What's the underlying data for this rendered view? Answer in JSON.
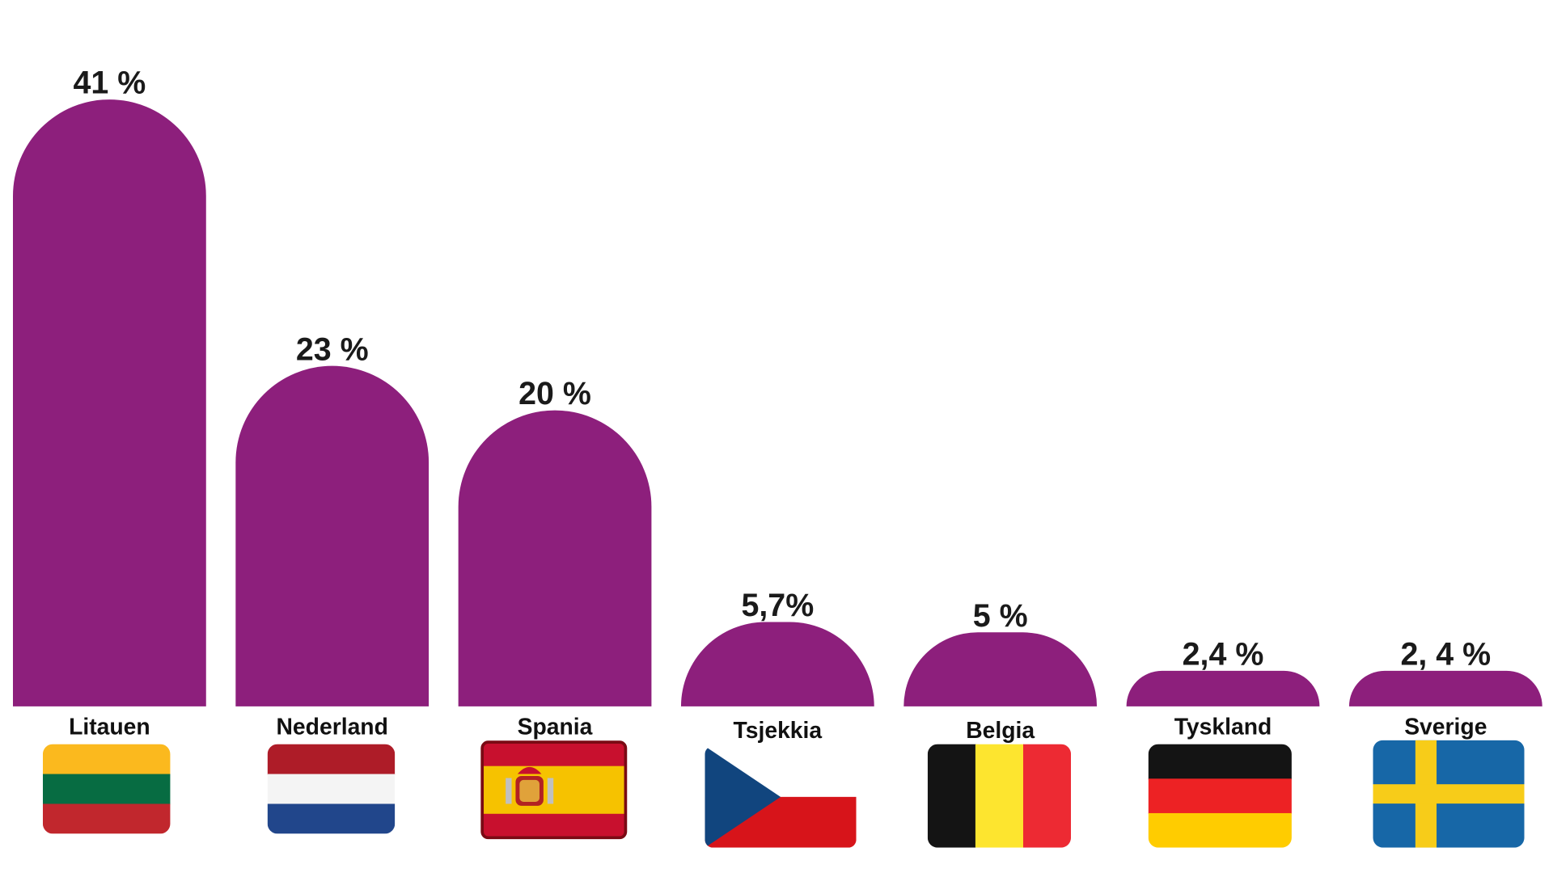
{
  "chart_data": {
    "type": "bar",
    "categories": [
      "Litauen",
      "Nederland",
      "Spania",
      "Tsjekkia",
      "Belgia",
      "Tyskland",
      "Sverige"
    ],
    "values": [
      41,
      23,
      20,
      5.7,
      5,
      2.4,
      2.4
    ],
    "value_labels": [
      "41 %",
      "23 %",
      "20 %",
      "5,7%",
      "5 %",
      "2,4 %",
      "2, 4 %"
    ],
    "ylim": [
      0,
      41
    ],
    "grid": false,
    "legend": "none",
    "bar_color": "#8d1f7c",
    "flags": [
      "lithuania-flag",
      "netherlands-flag",
      "spain-flag",
      "czechia-flag",
      "belgium-flag",
      "germany-flag",
      "sweden-flag"
    ]
  }
}
